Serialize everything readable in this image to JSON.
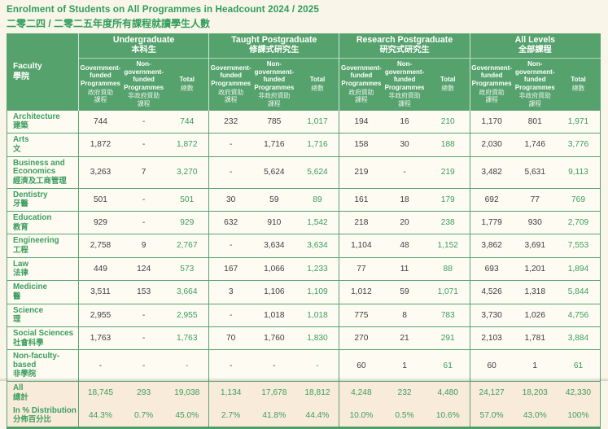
{
  "title": {
    "en": "Enrolment of Students on All Programmes in Headcount 2024 / 2025",
    "zh": "二零二四 / 二零二五年度所有課程就讀學生人數"
  },
  "table": {
    "faculty_header": {
      "en": "Faculty",
      "zh": "學院"
    },
    "groups": [
      {
        "en": "Undergraduate",
        "zh": "本科生"
      },
      {
        "en": "Taught Postgraduate",
        "zh": "修課式研究生"
      },
      {
        "en": "Research Postgraduate",
        "zh": "研究式研究生"
      },
      {
        "en": "All Levels",
        "zh": "全部課程"
      }
    ],
    "subcolumns": [
      {
        "en": "Government-funded Programmes",
        "zh": "政府資助\n課程"
      },
      {
        "en": "Non-government-funded Programmes",
        "zh": "非政府資助\n課程"
      },
      {
        "en": "Total",
        "zh": "總數"
      }
    ],
    "rows": [
      {
        "en": "Architecture",
        "zh": "建築",
        "values": [
          "744",
          "-",
          "744",
          "232",
          "785",
          "1,017",
          "194",
          "16",
          "210",
          "1,170",
          "801",
          "1,971"
        ]
      },
      {
        "en": "Arts",
        "zh": "文",
        "values": [
          "1,872",
          "-",
          "1,872",
          "-",
          "1,716",
          "1,716",
          "158",
          "30",
          "188",
          "2,030",
          "1,746",
          "3,776"
        ]
      },
      {
        "en": "Business and Economics",
        "zh": "經濟及工商管理",
        "values": [
          "3,263",
          "7",
          "3,270",
          "-",
          "5,624",
          "5,624",
          "219",
          "-",
          "219",
          "3,482",
          "5,631",
          "9,113"
        ]
      },
      {
        "en": "Dentistry",
        "zh": "牙醫",
        "values": [
          "501",
          "-",
          "501",
          "30",
          "59",
          "89",
          "161",
          "18",
          "179",
          "692",
          "77",
          "769"
        ]
      },
      {
        "en": "Education",
        "zh": "教育",
        "values": [
          "929",
          "-",
          "929",
          "632",
          "910",
          "1,542",
          "218",
          "20",
          "238",
          "1,779",
          "930",
          "2,709"
        ]
      },
      {
        "en": "Engineering",
        "zh": "工程",
        "values": [
          "2,758",
          "9",
          "2,767",
          "-",
          "3,634",
          "3,634",
          "1,104",
          "48",
          "1,152",
          "3,862",
          "3,691",
          "7,553"
        ]
      },
      {
        "en": "Law",
        "zh": "法律",
        "values": [
          "449",
          "124",
          "573",
          "167",
          "1,066",
          "1,233",
          "77",
          "11",
          "88",
          "693",
          "1,201",
          "1,894"
        ]
      },
      {
        "en": "Medicine",
        "zh": "醫",
        "values": [
          "3,511",
          "153",
          "3,664",
          "3",
          "1,106",
          "1,109",
          "1,012",
          "59",
          "1,071",
          "4,526",
          "1,318",
          "5,844"
        ]
      },
      {
        "en": "Science",
        "zh": "理",
        "values": [
          "2,955",
          "-",
          "2,955",
          "-",
          "1,018",
          "1,018",
          "775",
          "8",
          "783",
          "3,730",
          "1,026",
          "4,756"
        ]
      },
      {
        "en": "Social Sciences",
        "zh": "社會科學",
        "values": [
          "1,763",
          "-",
          "1,763",
          "70",
          "1,760",
          "1,830",
          "270",
          "21",
          "291",
          "2,103",
          "1,781",
          "3,884"
        ]
      },
      {
        "en": "Non-faculty-based",
        "zh": "非學院",
        "values": [
          "-",
          "-",
          "-",
          "-",
          "-",
          "-",
          "60",
          "1",
          "61",
          "60",
          "1",
          "61"
        ]
      }
    ],
    "footer_rows": [
      {
        "en": "All",
        "zh": "總計",
        "values": [
          "18,745",
          "293",
          "19,038",
          "1,134",
          "17,678",
          "18,812",
          "4,248",
          "232",
          "4,480",
          "24,127",
          "18,203",
          "42,330"
        ]
      },
      {
        "en": "In % Distribution",
        "zh": "分佈百分比",
        "values": [
          "44.3%",
          "0.7%",
          "45.0%",
          "2.7%",
          "41.8%",
          "44.4%",
          "10.0%",
          "0.5%",
          "10.6%",
          "57.0%",
          "43.0%",
          "100%"
        ]
      }
    ]
  },
  "colors": {
    "accent_green": "#3c9e5e",
    "header_green": "#55a26c",
    "line_green": "#5aa471",
    "highlight_peach": "#f9ebd9",
    "page_background": "#faf5e9",
    "text_dark": "#3e3e40"
  }
}
